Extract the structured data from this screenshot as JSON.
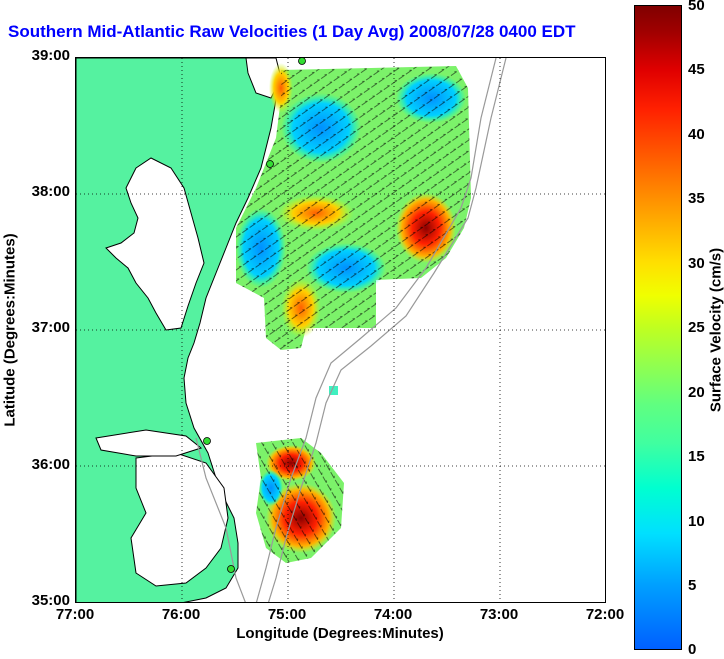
{
  "title": "Southern Mid-Atlantic Raw Velocities (1 Day Avg) 2008/07/28 0400 EDT",
  "xlabel": "Longitude (Degrees:Minutes)",
  "ylabel": "Latitude (Degrees:Minutes)",
  "x_ticks": [
    "77:00",
    "76:00",
    "75:00",
    "74:00",
    "73:00",
    "72:00"
  ],
  "y_ticks": [
    "39:00",
    "38:00",
    "37:00",
    "36:00",
    "35:00"
  ],
  "colorbar": {
    "title": "Surface Velocity (cm/s)",
    "ticks": [
      "50",
      "45",
      "40",
      "35",
      "30",
      "25",
      "20",
      "15",
      "10",
      "5",
      "0"
    ],
    "range": [
      0,
      50
    ]
  },
  "map": {
    "lon_range": [
      -77,
      -72
    ],
    "lat_range": [
      35,
      39
    ],
    "land_color": "#55f2a0",
    "coast_color": "#000000",
    "bathy_color": "#999999",
    "grid": true
  }
}
